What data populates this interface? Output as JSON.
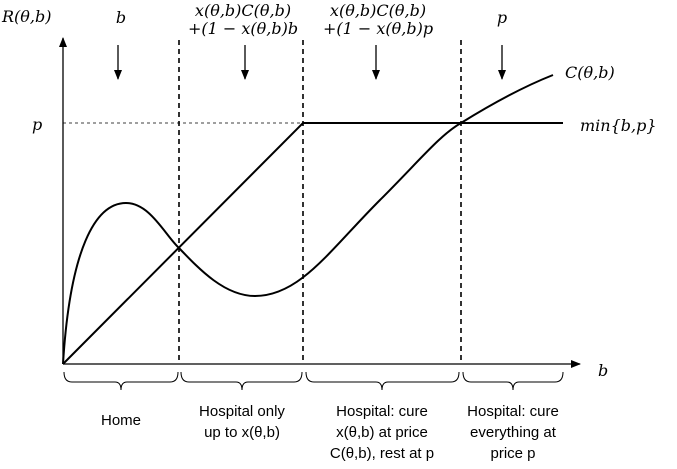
{
  "axes": {
    "y_label": "R(θ,b)",
    "x_label": "b",
    "p_label": "p"
  },
  "curves": {
    "cost": "C(θ,b)",
    "min": "min{b,p}"
  },
  "columns": [
    {
      "top": [
        "b"
      ],
      "bottom": [
        "Home"
      ]
    },
    {
      "top": [
        "x(θ,b)C(θ,b)",
        "+(1 − x(θ,b)b"
      ],
      "bottom": [
        "Hospital only",
        "up to x(θ,b)"
      ]
    },
    {
      "top": [
        "x(θ,b)C(θ,b)",
        "+(1 − x(θ,b)p"
      ],
      "bottom": [
        "Hospital: cure",
        "x(θ,b) at price",
        "C(θ,b), rest at p"
      ]
    },
    {
      "top": [
        "p"
      ],
      "bottom": [
        "Hospital: cure",
        "everything at",
        "price p"
      ]
    }
  ]
}
